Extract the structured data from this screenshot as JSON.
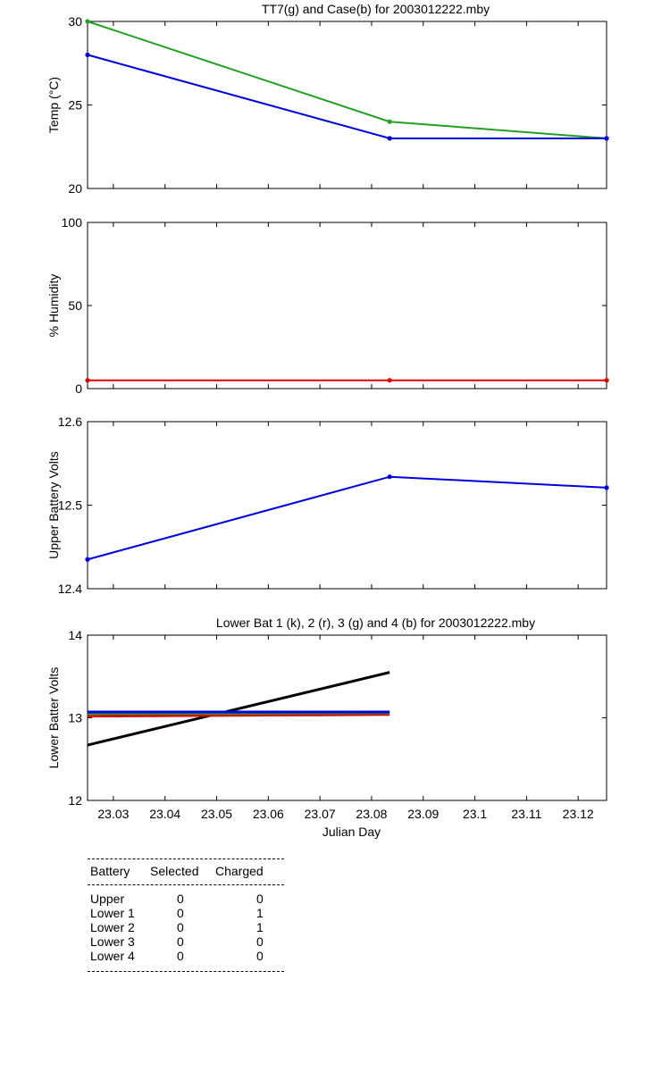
{
  "chart_data": [
    {
      "type": "line",
      "title": "TT7(g) and Case(b) for 2003012222.mby",
      "xlabel": "",
      "ylabel": "Temp  (°C)",
      "xlim": [
        23.025,
        23.1255
      ],
      "ylim": [
        20,
        30
      ],
      "yticks": [
        "20",
        "25",
        "30"
      ],
      "grid": false,
      "series": [
        {
          "color": "#22a022",
          "x": [
            23.025,
            23.0835,
            23.1255
          ],
          "y": [
            30,
            24,
            23
          ]
        },
        {
          "color": "#0000dd",
          "x": [
            23.025,
            23.0835,
            23.1255
          ],
          "y": [
            28,
            23,
            23
          ]
        }
      ]
    },
    {
      "type": "line",
      "title": "",
      "xlabel": "",
      "ylabel": "% Humidity",
      "xlim": [
        23.025,
        23.1255
      ],
      "ylim": [
        0,
        100
      ],
      "yticks": [
        "0",
        "50",
        "100"
      ],
      "grid": false,
      "series": [
        {
          "color": "#dd0000",
          "x": [
            23.025,
            23.0835,
            23.1255
          ],
          "y": [
            5,
            5,
            5
          ]
        }
      ]
    },
    {
      "type": "line",
      "title": "",
      "xlabel": "",
      "ylabel": "Upper Battery Volts",
      "xlim": [
        23.025,
        23.1255
      ],
      "ylim": [
        12.4,
        12.6
      ],
      "yticks": [
        "12.4",
        "12.5",
        "12.6"
      ],
      "grid": false,
      "series": [
        {
          "color": "#0000dd",
          "x": [
            23.025,
            23.0835,
            23.1255
          ],
          "y": [
            12.435,
            12.534,
            12.521
          ]
        }
      ]
    },
    {
      "type": "line",
      "title": "Lower Bat 1 (k), 2 (r), 3 (g) and 4 (b) for 2003012222.mby",
      "xlabel": "Julian Day",
      "ylabel": "Lower Batter Volts",
      "xlim": [
        23.025,
        23.1255
      ],
      "ylim": [
        12,
        14
      ],
      "yticks": [
        "12",
        "13",
        "14"
      ],
      "xticks": [
        "23.03",
        "23.04",
        "23.05",
        "23.06",
        "23.07",
        "23.08",
        "23.09",
        "23.1",
        "23.11",
        "23.12"
      ],
      "grid": false,
      "series": [
        {
          "color": "#000000",
          "x": [
            23.025,
            23.0835
          ],
          "y": [
            12.67,
            13.55
          ]
        },
        {
          "color": "#dd0000",
          "x": [
            23.025,
            23.0835
          ],
          "y": [
            13.02,
            13.04
          ]
        },
        {
          "color": "#22a022",
          "x": [
            23.025,
            23.0835
          ],
          "y": [
            13.05,
            13.06
          ]
        },
        {
          "color": "#0000dd",
          "x": [
            23.025,
            23.0835
          ],
          "y": [
            13.07,
            13.07
          ]
        }
      ]
    }
  ],
  "table": {
    "headers": [
      "Battery",
      "Selected",
      "Charged"
    ],
    "rows": [
      [
        "Upper",
        "0",
        "0"
      ],
      [
        "Lower 1",
        "0",
        "1"
      ],
      [
        "Lower 2",
        "0",
        "1"
      ],
      [
        "Lower 3",
        "0",
        "0"
      ],
      [
        "Lower 4",
        "0",
        "0"
      ]
    ]
  }
}
